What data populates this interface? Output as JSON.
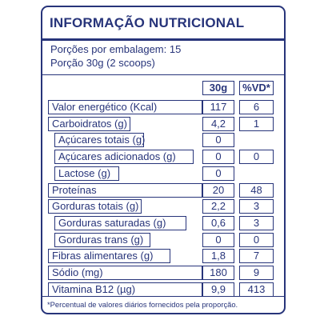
{
  "title": "INFORMAÇÃO NUTRICIONAL",
  "servings_per_package": "Porções por embalagem: 15",
  "serving_size": "Porção 30g (2 scoops)",
  "columns": {
    "amount": "30g",
    "daily_value": "%VD*"
  },
  "rows": [
    {
      "name": "Valor energético (Kcal)",
      "amount": "117",
      "dv": "6"
    },
    {
      "name": "Carboidratos (g)",
      "amount": "4,2",
      "dv": "1"
    },
    {
      "name": "Açúcares totais (g)",
      "amount": "0",
      "dv": ""
    },
    {
      "name": "Açúcares adicionados (g)",
      "amount": "0",
      "dv": "0"
    },
    {
      "name": "Lactose (g)",
      "amount": "0",
      "dv": ""
    },
    {
      "name": "Proteínas",
      "amount": "20",
      "dv": "48"
    },
    {
      "name": "Gorduras totais (g)",
      "amount": "2,2",
      "dv": "3"
    },
    {
      "name": "Gorduras saturadas (g)",
      "amount": "0,6",
      "dv": "3"
    },
    {
      "name": "Gorduras trans (g)",
      "amount": "0",
      "dv": "0"
    },
    {
      "name": "Fibras alimentares (g)",
      "amount": "1,8",
      "dv": "7"
    },
    {
      "name": "Sódio (mg)",
      "amount": "180",
      "dv": "9"
    },
    {
      "name": "Vitamina B12 (µg)",
      "amount": "9,9",
      "dv": "413"
    }
  ],
  "footnote": "*Percentual de valores diários fornecidos pela proporção.",
  "colors": {
    "ink": "#27347a",
    "background": "#ffffff"
  }
}
